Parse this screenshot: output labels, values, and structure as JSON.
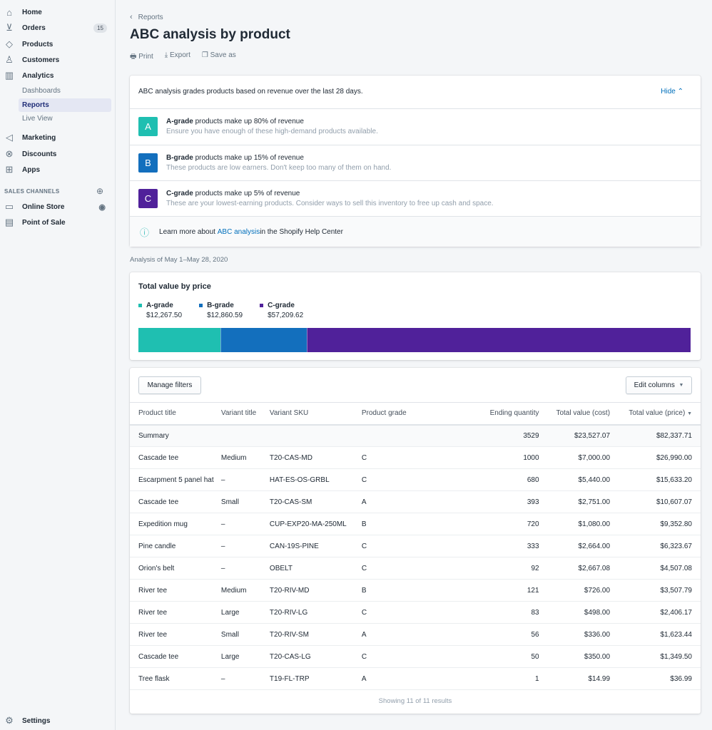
{
  "sidebar": {
    "items": [
      {
        "label": "Home",
        "icon": "home-icon"
      },
      {
        "label": "Orders",
        "icon": "orders-icon",
        "badge": "15"
      },
      {
        "label": "Products",
        "icon": "tag-icon"
      },
      {
        "label": "Customers",
        "icon": "person-icon"
      },
      {
        "label": "Analytics",
        "icon": "bar-chart-icon"
      }
    ],
    "analytics_sub": [
      "Dashboards",
      "Reports",
      "Live View"
    ],
    "items2": [
      {
        "label": "Marketing",
        "icon": "megaphone-icon"
      },
      {
        "label": "Discounts",
        "icon": "discount-icon"
      },
      {
        "label": "Apps",
        "icon": "apps-icon"
      }
    ],
    "sales_channels_label": "SALES CHANNELS",
    "channels": [
      {
        "label": "Online Store",
        "icon": "store-icon"
      },
      {
        "label": "Point of Sale",
        "icon": "pos-icon"
      }
    ],
    "settings": "Settings"
  },
  "header": {
    "breadcrumb": "Reports",
    "title": "ABC analysis by product",
    "actions": [
      "Print",
      "Export",
      "Save as"
    ]
  },
  "info": {
    "intro": "ABC analysis grades products based on revenue over the last 28 days.",
    "hide": "Hide",
    "grades": [
      {
        "letter": "A",
        "bold": "A-grade",
        "text": " products make up 80% of revenue",
        "desc": "Ensure you have enough of these high-demand products available.",
        "color": "#1fbfb1"
      },
      {
        "letter": "B",
        "bold": "B-grade",
        "text": " products make up 15% of revenue",
        "desc": "These products are low earners. Don't keep too many of them on hand.",
        "color": "#136fbd"
      },
      {
        "letter": "C",
        "bold": "C-grade",
        "text": " products make up 5% of revenue",
        "desc": "These are your lowest-earning products. Consider ways to sell this inventory to free up cash and space.",
        "color": "#50219a"
      }
    ],
    "learn_pre": "Learn more about ",
    "learn_link": "ABC analysis",
    "learn_post": " in the Shopify Help Center"
  },
  "period": "Analysis of May 1–May 28, 2020",
  "chart_data": {
    "type": "bar",
    "title": "Total value by price",
    "orientation": "horizontal-stacked",
    "series": [
      {
        "name": "A-grade",
        "value": 12267.5,
        "label": "$12,267.50",
        "color": "#1fbfb1"
      },
      {
        "name": "B-grade",
        "value": 12860.59,
        "label": "$12,860.59",
        "color": "#136fbd"
      },
      {
        "name": "C-grade",
        "value": 57209.62,
        "label": "$57,209.62",
        "color": "#50219a"
      }
    ]
  },
  "table": {
    "manage_filters": "Manage filters",
    "edit_columns": "Edit columns",
    "columns": [
      "Product title",
      "Variant title",
      "Variant SKU",
      "Product grade",
      "Ending quantity",
      "Total value (cost)",
      "Total value (price)"
    ],
    "summary": {
      "label": "Summary",
      "qty": "3529",
      "cost": "$23,527.07",
      "price": "$82,337.71"
    },
    "rows": [
      [
        "Cascade tee",
        "Medium",
        "T20-CAS-MD",
        "C",
        "1000",
        "$7,000.00",
        "$26,990.00"
      ],
      [
        "Escarpment 5 panel hat",
        "–",
        "HAT-ES-OS-GRBL",
        "C",
        "680",
        "$5,440.00",
        "$15,633.20"
      ],
      [
        "Cascade tee",
        "Small",
        "T20-CAS-SM",
        "A",
        "393",
        "$2,751.00",
        "$10,607.07"
      ],
      [
        "Expedition mug",
        "–",
        "CUP-EXP20-MA-250ML",
        "B",
        "720",
        "$1,080.00",
        "$9,352.80"
      ],
      [
        "Pine candle",
        "–",
        "CAN-19S-PINE",
        "C",
        "333",
        "$2,664.00",
        "$6,323.67"
      ],
      [
        "Orion's belt",
        "–",
        "OBELT",
        "C",
        "92",
        "$2,667.08",
        "$4,507.08"
      ],
      [
        "River tee",
        "Medium",
        "T20-RIV-MD",
        "B",
        "121",
        "$726.00",
        "$3,507.79"
      ],
      [
        "River tee",
        "Large",
        "T20-RIV-LG",
        "C",
        "83",
        "$498.00",
        "$2,406.17"
      ],
      [
        "River tee",
        "Small",
        "T20-RIV-SM",
        "A",
        "56",
        "$336.00",
        "$1,623.44"
      ],
      [
        "Cascade tee",
        "Large",
        "T20-CAS-LG",
        "C",
        "50",
        "$350.00",
        "$1,349.50"
      ],
      [
        "Tree flask",
        "–",
        "T19-FL-TRP",
        "A",
        "1",
        "$14.99",
        "$36.99"
      ]
    ],
    "footer": "Showing 11 of 11 results"
  }
}
